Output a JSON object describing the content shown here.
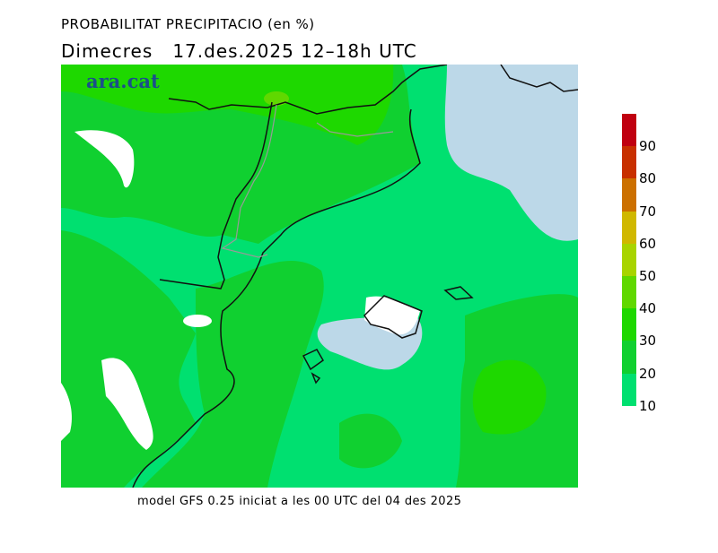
{
  "title": "PROBABILITAT PRECIPITACIO (en %)",
  "subtitle": "Dimecres   17.des.2025 12–18h UTC",
  "logo": "ara.cat",
  "footer": "model GFS 0.25 iniciat a les 00 UTC del 04 des 2025",
  "legend": {
    "colors": [
      "#c00010",
      "#c83000",
      "#cc7000",
      "#d0b800",
      "#a8d400",
      "#60d800",
      "#1ed800",
      "#10d030",
      "#00e070"
    ],
    "labels": [
      "90",
      "80",
      "70",
      "60",
      "50",
      "40",
      "30",
      "20",
      "10"
    ]
  },
  "colors": {
    "sea_no_data": "#bcd8e8",
    "land_line": "#111111",
    "border_line": "#999999"
  }
}
